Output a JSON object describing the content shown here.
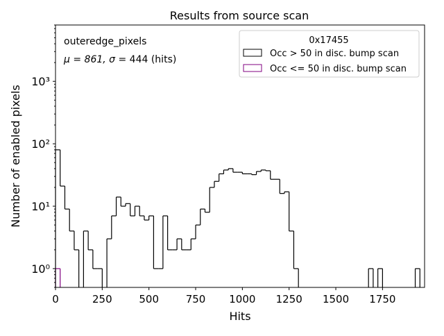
{
  "chart_data": {
    "type": "histogram",
    "title": "Results from source scan",
    "xlabel": "Hits",
    "ylabel": "Number of enabled pixels",
    "xlim": [
      0,
      1975
    ],
    "ylim": [
      0.5,
      8000
    ],
    "yscale": "log",
    "grid": false,
    "bin_width": 25,
    "x_ticks": [
      0,
      250,
      500,
      750,
      1000,
      1250,
      1500,
      1750
    ],
    "x_tick_labels": [
      "0",
      "250",
      "500",
      "750",
      "1000",
      "1250",
      "1500",
      "1750"
    ],
    "y_ticks": [
      1,
      10,
      100,
      1000
    ],
    "y_tick_labels": [
      "10⁰",
      "10¹",
      "10²",
      "10³"
    ],
    "annotations": {
      "name": "outeredge_pixels",
      "stats_prefix": "μ = 861, ",
      "stats_sigma_prefix": "σ",
      "stats_suffix": " = 444 (hits)"
    },
    "legend": {
      "title": "0x17455",
      "placement": "top-right"
    },
    "series": [
      {
        "name": "Occ > 50 in disc. bump scan",
        "color": "#000000",
        "bins": [
          [
            0,
            80
          ],
          [
            25,
            21
          ],
          [
            50,
            9
          ],
          [
            75,
            4
          ],
          [
            100,
            2
          ],
          [
            150,
            4
          ],
          [
            175,
            2
          ],
          [
            200,
            1
          ],
          [
            225,
            1
          ],
          [
            275,
            3
          ],
          [
            300,
            7
          ],
          [
            325,
            14
          ],
          [
            350,
            10
          ],
          [
            375,
            11
          ],
          [
            400,
            7
          ],
          [
            425,
            10
          ],
          [
            450,
            7
          ],
          [
            475,
            6
          ],
          [
            500,
            7
          ],
          [
            525,
            1
          ],
          [
            550,
            1
          ],
          [
            575,
            7
          ],
          [
            600,
            2
          ],
          [
            625,
            2
          ],
          [
            650,
            3
          ],
          [
            675,
            2
          ],
          [
            700,
            2
          ],
          [
            725,
            3
          ],
          [
            750,
            5
          ],
          [
            775,
            9
          ],
          [
            800,
            8
          ],
          [
            825,
            20
          ],
          [
            850,
            25
          ],
          [
            875,
            33
          ],
          [
            900,
            38
          ],
          [
            925,
            40
          ],
          [
            950,
            35
          ],
          [
            975,
            35
          ],
          [
            1000,
            33
          ],
          [
            1025,
            33
          ],
          [
            1050,
            32
          ],
          [
            1075,
            36
          ],
          [
            1100,
            38
          ],
          [
            1125,
            37
          ],
          [
            1150,
            27
          ],
          [
            1175,
            27
          ],
          [
            1200,
            16
          ],
          [
            1225,
            17
          ],
          [
            1250,
            4
          ],
          [
            1275,
            1
          ],
          [
            1675,
            1
          ],
          [
            1725,
            1
          ],
          [
            1925,
            1
          ]
        ]
      },
      {
        "name": "Occ <= 50 in disc. bump scan",
        "color": "#800080",
        "bins": [
          [
            0,
            1
          ]
        ]
      }
    ]
  }
}
